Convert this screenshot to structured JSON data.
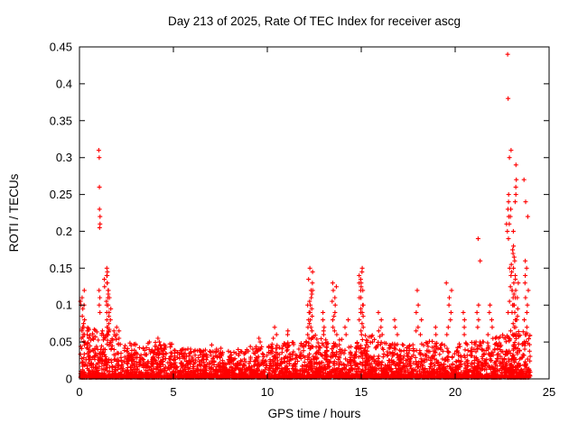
{
  "chart_data": {
    "type": "scatter",
    "title": "Day 213 of 2025, Rate Of TEC Index for receiver ascg",
    "xlabel": "GPS time / hours",
    "ylabel": "ROTI / TECUs",
    "xlim": [
      0,
      25
    ],
    "ylim": [
      0,
      0.45
    ],
    "xticks": [
      0,
      5,
      10,
      15,
      20,
      25
    ],
    "yticks": [
      0,
      0.05,
      0.1,
      0.15,
      0.2,
      0.25,
      0.3,
      0.35,
      0.4,
      0.45
    ],
    "marker": "plus",
    "marker_color": "#ff0000",
    "background_color": "#ffffff",
    "border_color": "#000000",
    "grid": false,
    "legend": "none",
    "data_x_extent": [
      0,
      24
    ],
    "baseline_bins": [
      {
        "h": 0,
        "ymax": 0.07,
        "n": 185
      },
      {
        "h": 1,
        "ymax": 0.07,
        "n": 185
      },
      {
        "h": 2,
        "ymax": 0.05,
        "n": 165
      },
      {
        "h": 3,
        "ymax": 0.045,
        "n": 160
      },
      {
        "h": 4,
        "ymax": 0.05,
        "n": 160
      },
      {
        "h": 5,
        "ymax": 0.042,
        "n": 160
      },
      {
        "h": 6,
        "ymax": 0.04,
        "n": 160
      },
      {
        "h": 7,
        "ymax": 0.042,
        "n": 160
      },
      {
        "h": 8,
        "ymax": 0.04,
        "n": 160
      },
      {
        "h": 9,
        "ymax": 0.045,
        "n": 160
      },
      {
        "h": 10,
        "ymax": 0.05,
        "n": 165
      },
      {
        "h": 11,
        "ymax": 0.05,
        "n": 165
      },
      {
        "h": 12,
        "ymax": 0.06,
        "n": 175
      },
      {
        "h": 13,
        "ymax": 0.055,
        "n": 175
      },
      {
        "h": 14,
        "ymax": 0.05,
        "n": 170
      },
      {
        "h": 15,
        "ymax": 0.06,
        "n": 175
      },
      {
        "h": 16,
        "ymax": 0.05,
        "n": 165
      },
      {
        "h": 17,
        "ymax": 0.048,
        "n": 165
      },
      {
        "h": 18,
        "ymax": 0.052,
        "n": 165
      },
      {
        "h": 19,
        "ymax": 0.05,
        "n": 165
      },
      {
        "h": 20,
        "ymax": 0.05,
        "n": 165
      },
      {
        "h": 21,
        "ymax": 0.052,
        "n": 170
      },
      {
        "h": 22,
        "ymax": 0.06,
        "n": 190
      },
      {
        "h": 23,
        "ymax": 0.065,
        "n": 195
      }
    ],
    "spike_clusters": [
      {
        "x": 0.15,
        "spread": 0.15,
        "ys": [
          0.12,
          0.11,
          0.105,
          0.1,
          0.095,
          0.09,
          0.085,
          0.08,
          0.075,
          0.07,
          0.065,
          0.06,
          0.1,
          0.09,
          0.08,
          0.07,
          0.06,
          0.055
        ]
      },
      {
        "x": 1.05,
        "spread": 0.07,
        "ys": [
          0.31,
          0.3,
          0.26,
          0.23,
          0.22,
          0.21,
          0.205,
          0.12,
          0.11,
          0.1,
          0.09
        ]
      },
      {
        "x": 1.5,
        "spread": 0.2,
        "ys": [
          0.15,
          0.145,
          0.14,
          0.135,
          0.13,
          0.125,
          0.12,
          0.115,
          0.11,
          0.105,
          0.1,
          0.095,
          0.09,
          0.085,
          0.08,
          0.075,
          0.07,
          0.065,
          0.06,
          0.14,
          0.13,
          0.12,
          0.11,
          0.1,
          0.09,
          0.08,
          0.07,
          0.06
        ]
      },
      {
        "x": 2.1,
        "spread": 0.15,
        "ys": [
          0.07,
          0.065,
          0.06,
          0.055
        ]
      },
      {
        "x": 3.5,
        "spread": 0.3,
        "ys": [
          0.05,
          0.048
        ]
      },
      {
        "x": 4.3,
        "spread": 0.2,
        "ys": [
          0.055,
          0.05
        ]
      },
      {
        "x": 7.0,
        "spread": 0.3,
        "ys": [
          0.046
        ]
      },
      {
        "x": 9.6,
        "spread": 0.2,
        "ys": [
          0.055,
          0.05
        ]
      },
      {
        "x": 10.4,
        "spread": 0.15,
        "ys": [
          0.07,
          0.06,
          0.055
        ]
      },
      {
        "x": 11.1,
        "spread": 0.15,
        "ys": [
          0.065,
          0.06
        ]
      },
      {
        "x": 12.3,
        "spread": 0.2,
        "ys": [
          0.15,
          0.145,
          0.135,
          0.13,
          0.12,
          0.115,
          0.11,
          0.105,
          0.1,
          0.095,
          0.09,
          0.085,
          0.08,
          0.075,
          0.07,
          0.065,
          0.06,
          0.12,
          0.1,
          0.09,
          0.08,
          0.07
        ]
      },
      {
        "x": 13.0,
        "spread": 0.15,
        "ys": [
          0.09,
          0.08,
          0.07,
          0.065,
          0.06
        ]
      },
      {
        "x": 13.6,
        "spread": 0.2,
        "ys": [
          0.13,
          0.125,
          0.12,
          0.11,
          0.105,
          0.1,
          0.09,
          0.085,
          0.08,
          0.07,
          0.065,
          0.06
        ]
      },
      {
        "x": 14.2,
        "spread": 0.15,
        "ys": [
          0.08,
          0.07,
          0.06
        ]
      },
      {
        "x": 15.0,
        "spread": 0.25,
        "ys": [
          0.15,
          0.145,
          0.14,
          0.135,
          0.13,
          0.125,
          0.12,
          0.11,
          0.1,
          0.095,
          0.09,
          0.085,
          0.08,
          0.075,
          0.07,
          0.065,
          0.06,
          0.13,
          0.12,
          0.11,
          0.1,
          0.09
        ]
      },
      {
        "x": 16.0,
        "spread": 0.2,
        "ys": [
          0.09,
          0.08,
          0.07,
          0.065,
          0.06
        ]
      },
      {
        "x": 16.8,
        "spread": 0.2,
        "ys": [
          0.08,
          0.07,
          0.06
        ]
      },
      {
        "x": 18.0,
        "spread": 0.25,
        "ys": [
          0.12,
          0.1,
          0.09,
          0.08,
          0.07,
          0.065,
          0.06
        ]
      },
      {
        "x": 19.0,
        "spread": 0.2,
        "ys": [
          0.07,
          0.06
        ]
      },
      {
        "x": 19.7,
        "spread": 0.2,
        "ys": [
          0.13,
          0.12,
          0.11,
          0.1,
          0.09,
          0.08,
          0.07,
          0.06
        ]
      },
      {
        "x": 20.4,
        "spread": 0.15,
        "ys": [
          0.09,
          0.08,
          0.07,
          0.06
        ]
      },
      {
        "x": 21.2,
        "spread": 0.15,
        "ys": [
          0.19,
          0.16,
          0.1,
          0.09,
          0.08,
          0.07
        ]
      },
      {
        "x": 21.8,
        "spread": 0.2,
        "ys": [
          0.1,
          0.09,
          0.08,
          0.07,
          0.06
        ]
      },
      {
        "x": 22.8,
        "spread": 0.08,
        "ys": [
          0.44,
          0.38,
          0.25,
          0.24,
          0.23,
          0.22,
          0.21,
          0.2
        ]
      },
      {
        "x": 23.1,
        "spread": 0.3,
        "ys": [
          0.31,
          0.3,
          0.29,
          0.27,
          0.26,
          0.25,
          0.24,
          0.23,
          0.22,
          0.21,
          0.2,
          0.19,
          0.18,
          0.175,
          0.17,
          0.165,
          0.16,
          0.155,
          0.15,
          0.145,
          0.14,
          0.135,
          0.13,
          0.125,
          0.12,
          0.115,
          0.11,
          0.105,
          0.1,
          0.095,
          0.09,
          0.085,
          0.08,
          0.075,
          0.07,
          0.065,
          0.06,
          0.15,
          0.14,
          0.13,
          0.12,
          0.11,
          0.1,
          0.09,
          0.08,
          0.07,
          0.06,
          0.12,
          0.11,
          0.1,
          0.09,
          0.08
        ]
      },
      {
        "x": 23.8,
        "spread": 0.15,
        "ys": [
          0.27,
          0.24,
          0.22,
          0.16,
          0.15,
          0.14,
          0.13,
          0.12,
          0.11,
          0.1,
          0.09,
          0.08,
          0.07,
          0.06
        ]
      }
    ]
  }
}
